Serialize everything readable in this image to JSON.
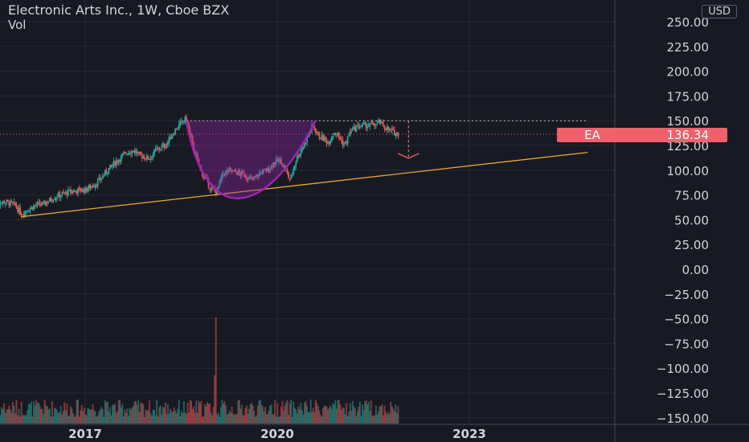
{
  "header": {
    "title": "Electronic Arts Inc., 1W, Cboe BZX",
    "indicator": "Vol",
    "currency_button": "USD"
  },
  "price_tag": {
    "symbol": "EA",
    "value": "136.34",
    "color": "#f0616b"
  },
  "chart_data": {
    "type": "candlestick",
    "yticks": [
      "250.00",
      "225.00",
      "200.00",
      "175.00",
      "150.00",
      "125.00",
      "100.00",
      "75.00",
      "50.00",
      "25.00",
      "0.00",
      "−25.00",
      "−50.00",
      "−75.00",
      "−100.00",
      "−125.00",
      "−150.00"
    ],
    "ylim": [
      -160,
      258
    ],
    "xticks": [
      "2017",
      "2020",
      "2023"
    ],
    "xlim": [
      2015.6,
      2024.9
    ],
    "last_price": 136.34,
    "series_close_weekly_approx": [
      [
        2015.6,
        67
      ],
      [
        2015.75,
        68
      ],
      [
        2015.9,
        65
      ],
      [
        2016.0,
        56
      ],
      [
        2016.1,
        60
      ],
      [
        2016.2,
        64
      ],
      [
        2016.35,
        66
      ],
      [
        2016.5,
        72
      ],
      [
        2016.6,
        75
      ],
      [
        2016.75,
        78
      ],
      [
        2016.9,
        80
      ],
      [
        2017.0,
        80
      ],
      [
        2017.1,
        84
      ],
      [
        2017.2,
        88
      ],
      [
        2017.35,
        100
      ],
      [
        2017.5,
        110
      ],
      [
        2017.65,
        118
      ],
      [
        2017.75,
        120
      ],
      [
        2017.85,
        115
      ],
      [
        2018.0,
        112
      ],
      [
        2018.1,
        120
      ],
      [
        2018.25,
        125
      ],
      [
        2018.4,
        140
      ],
      [
        2018.5,
        148
      ],
      [
        2018.58,
        152
      ],
      [
        2018.7,
        120
      ],
      [
        2018.8,
        100
      ],
      [
        2018.95,
        82
      ],
      [
        2019.05,
        78
      ],
      [
        2019.15,
        96
      ],
      [
        2019.25,
        100
      ],
      [
        2019.35,
        98
      ],
      [
        2019.5,
        95
      ],
      [
        2019.6,
        90
      ],
      [
        2019.75,
        98
      ],
      [
        2019.85,
        100
      ],
      [
        2019.95,
        108
      ],
      [
        2020.05,
        110
      ],
      [
        2020.2,
        90
      ],
      [
        2020.3,
        112
      ],
      [
        2020.45,
        130
      ],
      [
        2020.55,
        145
      ],
      [
        2020.65,
        135
      ],
      [
        2020.8,
        128
      ],
      [
        2020.9,
        140
      ],
      [
        2021.05,
        125
      ],
      [
        2021.15,
        140
      ],
      [
        2021.3,
        145
      ],
      [
        2021.45,
        145
      ],
      [
        2021.6,
        148
      ],
      [
        2021.75,
        140
      ],
      [
        2021.9,
        136.34
      ]
    ],
    "trendline": {
      "color": "#f0a336",
      "from": [
        2016.0,
        53
      ],
      "to": [
        2024.85,
        118
      ]
    },
    "resistance_line": {
      "value": 150,
      "from": 2018.58,
      "to": 2024.85
    },
    "cup_pattern": {
      "color": "#9c27b0",
      "from": 2018.58,
      "to": 2020.6,
      "bottom": 74
    },
    "target_arrow": {
      "x": 2022.05,
      "from": 150,
      "to": 112,
      "color": "#f0616b"
    },
    "volume_note": "volume histogram in lower pane, spike near 2019"
  }
}
